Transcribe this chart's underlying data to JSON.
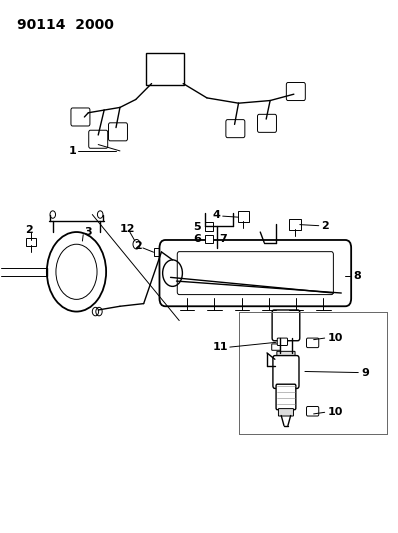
{
  "title": "90114  2000",
  "bg_color": "#ffffff",
  "line_color": "#000000",
  "fig_width": 3.98,
  "fig_height": 5.33,
  "dpi": 100
}
